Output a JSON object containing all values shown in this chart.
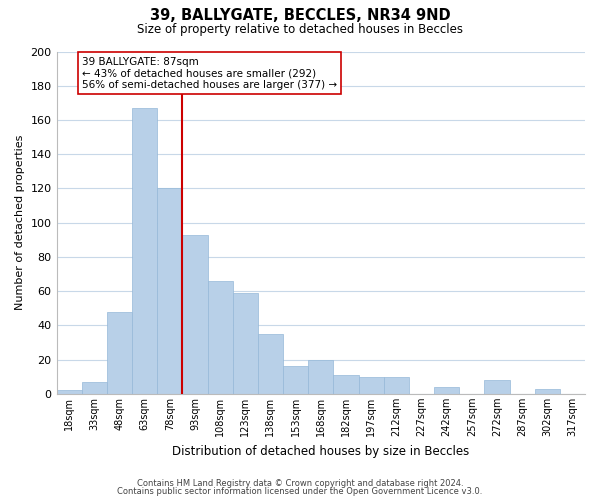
{
  "title": "39, BALLYGATE, BECCLES, NR34 9ND",
  "subtitle": "Size of property relative to detached houses in Beccles",
  "xlabel": "Distribution of detached houses by size in Beccles",
  "ylabel": "Number of detached properties",
  "bar_color": "#b8d0e8",
  "bar_edge_color": "#95b8d8",
  "categories": [
    "18sqm",
    "33sqm",
    "48sqm",
    "63sqm",
    "78sqm",
    "93sqm",
    "108sqm",
    "123sqm",
    "138sqm",
    "153sqm",
    "168sqm",
    "182sqm",
    "197sqm",
    "212sqm",
    "227sqm",
    "242sqm",
    "257sqm",
    "272sqm",
    "287sqm",
    "302sqm",
    "317sqm"
  ],
  "values": [
    2,
    7,
    48,
    167,
    120,
    93,
    66,
    59,
    35,
    16,
    20,
    11,
    10,
    10,
    0,
    4,
    0,
    8,
    0,
    3,
    0
  ],
  "vline_x_index": 4.5,
  "vline_color": "#cc0000",
  "annotation_title": "39 BALLYGATE: 87sqm",
  "annotation_line1": "← 43% of detached houses are smaller (292)",
  "annotation_line2": "56% of semi-detached houses are larger (377) →",
  "ylim": [
    0,
    200
  ],
  "yticks": [
    0,
    20,
    40,
    60,
    80,
    100,
    120,
    140,
    160,
    180,
    200
  ],
  "footer1": "Contains HM Land Registry data © Crown copyright and database right 2024.",
  "footer2": "Contains public sector information licensed under the Open Government Licence v3.0.",
  "background_color": "#ffffff",
  "grid_color": "#c8d8e8"
}
